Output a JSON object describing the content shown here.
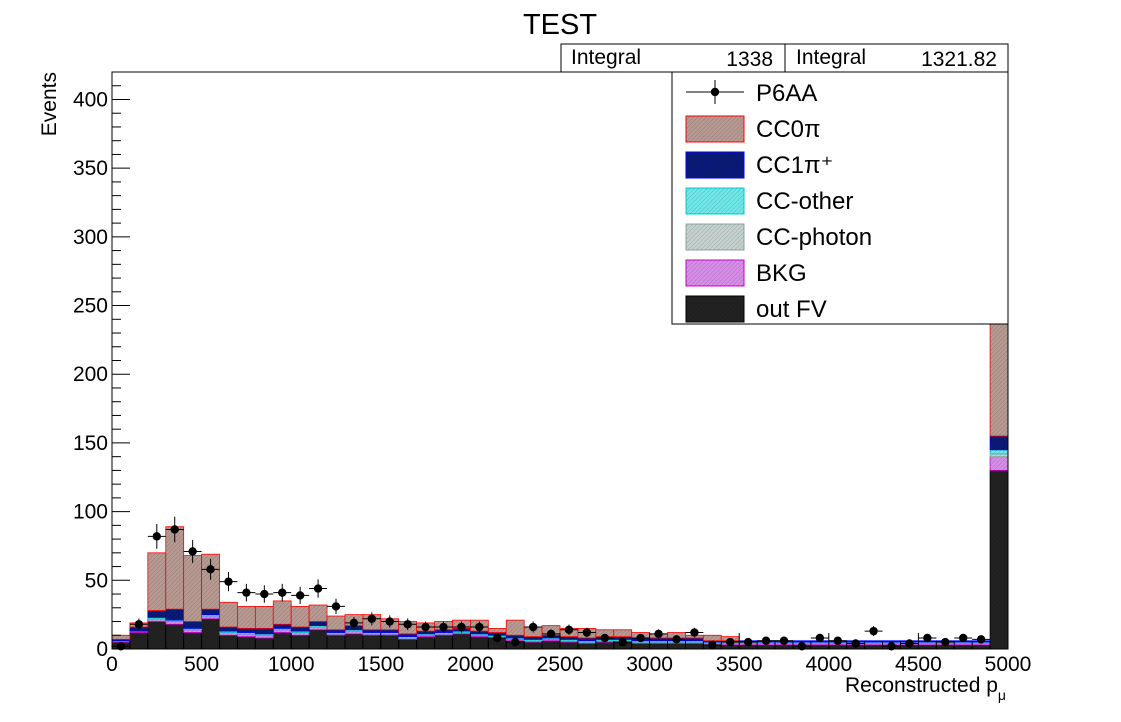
{
  "chart_data": {
    "type": "bar",
    "title": "TEST",
    "xlabel": "Reconstructed p",
    "xlabel_sub": "μ",
    "ylabel": "Events",
    "xlim": [
      0,
      5000
    ],
    "ylim": [
      0,
      420
    ],
    "bin_width": 100,
    "x_ticks": [
      0,
      500,
      1000,
      1500,
      2000,
      2500,
      3000,
      3500,
      4000,
      4500,
      5000
    ],
    "y_ticks": [
      0,
      50,
      100,
      150,
      200,
      250,
      300,
      350,
      400
    ],
    "stats": [
      {
        "label": "Integral",
        "value": "1338"
      },
      {
        "label": "Integral",
        "value": "1321.82"
      }
    ],
    "legend_position": "top-right",
    "legend": [
      {
        "name": "P6AA",
        "kind": "marker",
        "color": "#000000"
      },
      {
        "name": "CC0π",
        "kind": "fill",
        "color": "#b89a93",
        "line": "#ff0000"
      },
      {
        "name": "CC1π⁺",
        "kind": "fill",
        "color": "#0a1a78",
        "line": "#0000ff"
      },
      {
        "name": "CC-other",
        "kind": "fill",
        "color": "#6fe8ea",
        "line": "#00cccc"
      },
      {
        "name": "CC-photon",
        "kind": "fill",
        "color": "#c6d2cf",
        "line": "#8aa5a0"
      },
      {
        "name": "BKG",
        "kind": "fill",
        "color": "#d78ee8",
        "line": "#cc00cc"
      },
      {
        "name": "out FV",
        "kind": "fill",
        "color": "#222222",
        "line": "#000000"
      }
    ],
    "stack": [
      {
        "name": "out FV",
        "values": [
          5,
          12,
          20,
          18,
          12,
          22,
          10,
          9,
          8,
          12,
          10,
          14,
          10,
          11,
          10,
          10,
          7,
          9,
          10,
          11,
          9,
          8,
          6,
          5,
          6,
          5,
          4,
          5,
          5,
          4,
          4,
          4,
          4,
          3,
          3,
          3,
          3,
          3,
          3,
          3,
          3,
          3,
          3,
          3,
          3,
          3,
          3,
          3,
          3,
          130
        ]
      },
      {
        "name": "BKG",
        "values": [
          1,
          1,
          2,
          2,
          2,
          2,
          2,
          2,
          2,
          2,
          2,
          2,
          1,
          2,
          1,
          1,
          1,
          1,
          1,
          1,
          1,
          1,
          1,
          1,
          1,
          1,
          1,
          1,
          1,
          1,
          1,
          1,
          1,
          1,
          1,
          1,
          1,
          1,
          1,
          1,
          1,
          1,
          1,
          1,
          1,
          1,
          1,
          1,
          1,
          10
        ]
      },
      {
        "name": "CC-photon",
        "values": [
          0,
          0,
          0,
          0,
          0,
          0,
          0,
          0,
          0,
          0,
          0,
          0,
          0,
          0,
          0,
          0,
          0,
          0,
          0,
          0,
          0,
          0,
          0,
          0,
          0,
          0,
          0,
          0,
          0,
          0,
          0,
          0,
          0,
          0,
          0,
          0,
          0,
          0,
          0,
          0,
          0,
          0,
          0,
          0,
          0,
          0,
          0,
          0,
          0,
          2
        ]
      },
      {
        "name": "CC-other",
        "values": [
          0,
          0,
          1,
          1,
          1,
          1,
          1,
          1,
          1,
          1,
          1,
          1,
          1,
          1,
          1,
          1,
          1,
          1,
          1,
          1,
          1,
          1,
          1,
          1,
          1,
          1,
          1,
          1,
          1,
          1,
          1,
          1,
          1,
          1,
          1,
          1,
          1,
          1,
          1,
          1,
          1,
          1,
          1,
          1,
          1,
          1,
          1,
          1,
          1,
          3
        ]
      },
      {
        "name": "CC1π⁺",
        "values": [
          1,
          3,
          5,
          8,
          5,
          4,
          3,
          3,
          4,
          3,
          3,
          3,
          2,
          3,
          2,
          2,
          2,
          2,
          2,
          2,
          2,
          2,
          2,
          2,
          2,
          2,
          2,
          2,
          2,
          2,
          2,
          2,
          2,
          1,
          1,
          1,
          1,
          1,
          1,
          1,
          1,
          1,
          1,
          1,
          1,
          1,
          1,
          1,
          1,
          10
        ]
      },
      {
        "name": "CC0π",
        "values": [
          3,
          3,
          42,
          60,
          48,
          40,
          18,
          16,
          16,
          17,
          15,
          12,
          10,
          8,
          11,
          8,
          9,
          6,
          6,
          6,
          8,
          3,
          11,
          7,
          7,
          6,
          7,
          5,
          5,
          4,
          3,
          4,
          2,
          4,
          3,
          0,
          0,
          0,
          0,
          0,
          0,
          0,
          0,
          0,
          0,
          0,
          0,
          0,
          0,
          110
        ]
      }
    ],
    "data_points": {
      "name": "P6AA",
      "values": [
        2,
        18,
        82,
        87,
        71,
        58,
        49,
        41,
        40,
        41,
        39,
        44,
        31,
        19,
        22,
        20,
        18,
        16,
        16,
        16,
        16,
        8,
        5,
        16,
        11,
        14,
        12,
        8,
        5,
        8,
        11,
        7,
        12,
        3,
        5,
        5,
        6,
        6,
        2,
        8,
        6,
        4,
        13,
        2,
        4,
        8,
        5,
        8,
        7,
        null
      ]
    }
  }
}
